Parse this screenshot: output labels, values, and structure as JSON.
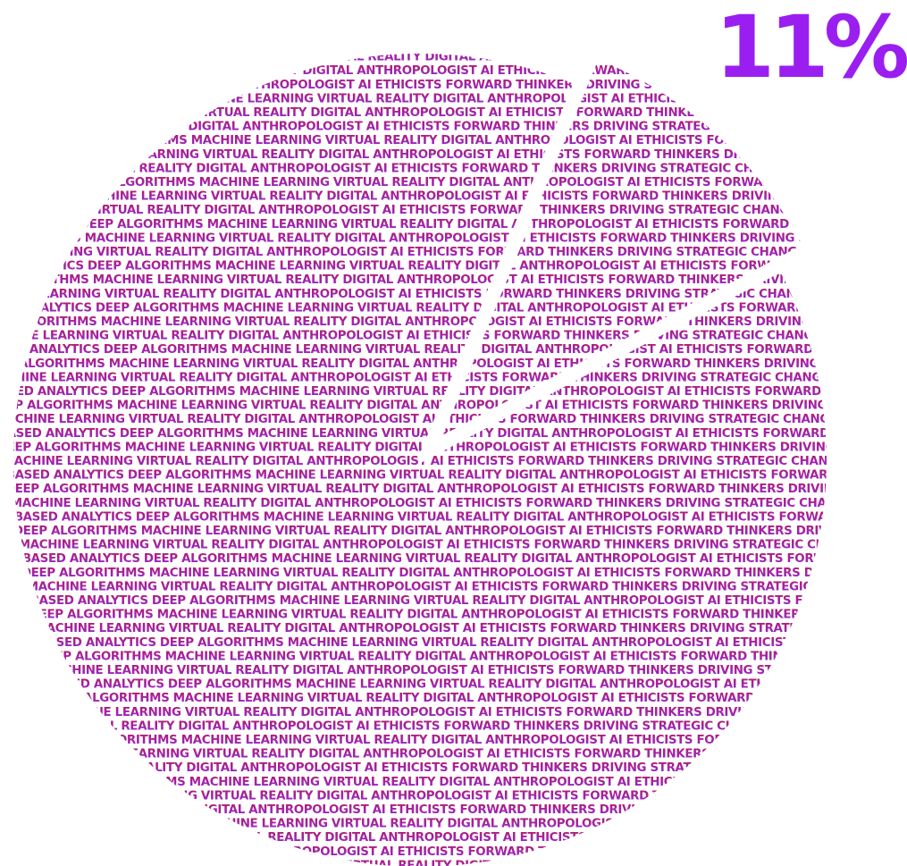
{
  "callout": {
    "value": 11,
    "label": "11%"
  },
  "phrase": "CLOUD BASED ANALYTICS DEEP ALGORITHMS MACHINE LEARNING VIRTUAL REALITY DIGITAL ANTHROPOLOGIST AI ETHICISTS FORWARD THINKERS DRIVING STRATEGIC CHANGE SOCIAL SCIENTIST TECH GURUS ENVIRONMENTAL STEWARDS RESPONSIBLE FLEXIBLE PROACTIVE INCLUSIVE INNOVATIVE CUSTOMER CENTRIC AUTOMATION ARTIFICIAL INTELLIGENCE SMART INFRASTRUCTURE AUGMENTED REALITY CYBERSECURITY BLOCKCHAIN SUSTAINABLE SOLUTIONS CARBON EMISSION FREE PLANET FRIENDLY EFFORTS ROBOTICS SMART HOMES PHOTO VOLTAIC PANELS HYDROPONICS HUMAN CENTRIC INNOVATION CLOUD COMPUTING BIG DATA SENSORS ADVANCED ANALYTICS HUMANOID ROBOTS"
}
